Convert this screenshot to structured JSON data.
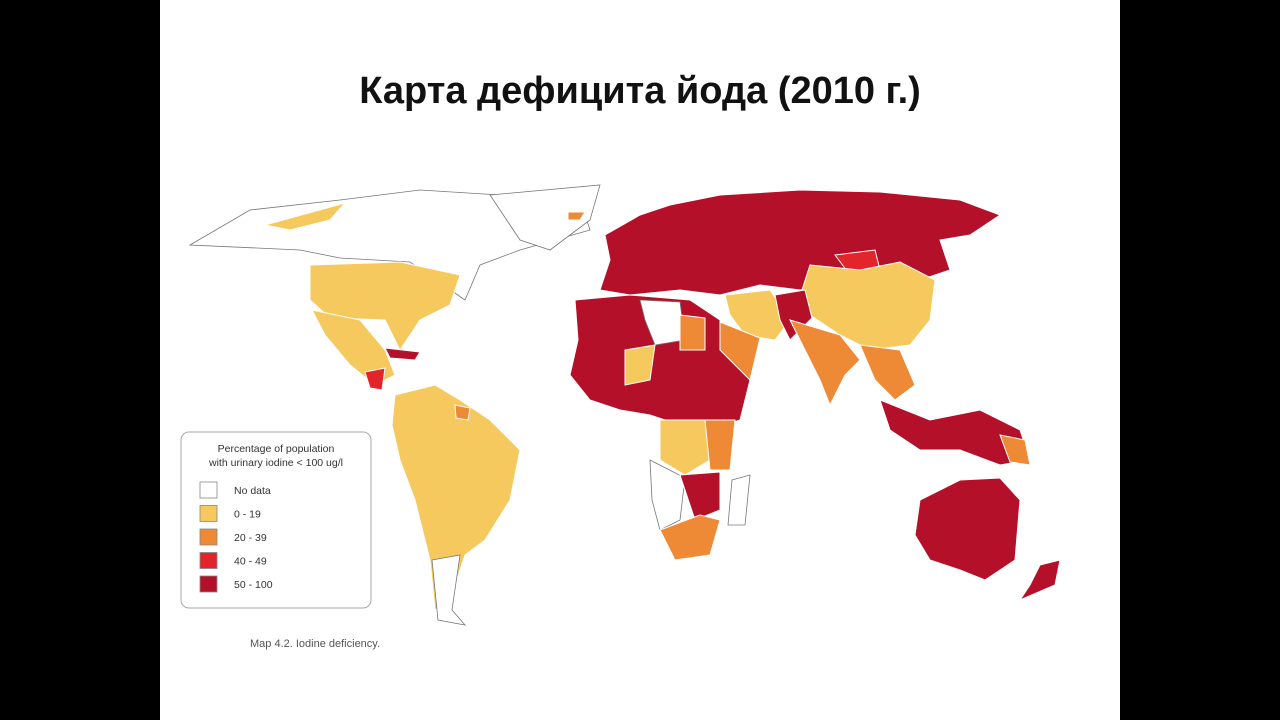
{
  "title": "Карта дефицита йода (2010 г.)",
  "legend": {
    "title_lines": [
      "Percentage of population",
      "with urinary iodine < 100 ug/l"
    ],
    "items": [
      {
        "label": "No data",
        "color": "#ffffff"
      },
      {
        "label": "0 - 19",
        "color": "#f5c95e"
      },
      {
        "label": "20 - 39",
        "color": "#ee8a35"
      },
      {
        "label": "40 - 49",
        "color": "#e2252a"
      },
      {
        "label": "50 - 100",
        "color": "#b5102a"
      }
    ]
  },
  "caption": "Map 4.2. Iodine deficiency."
}
